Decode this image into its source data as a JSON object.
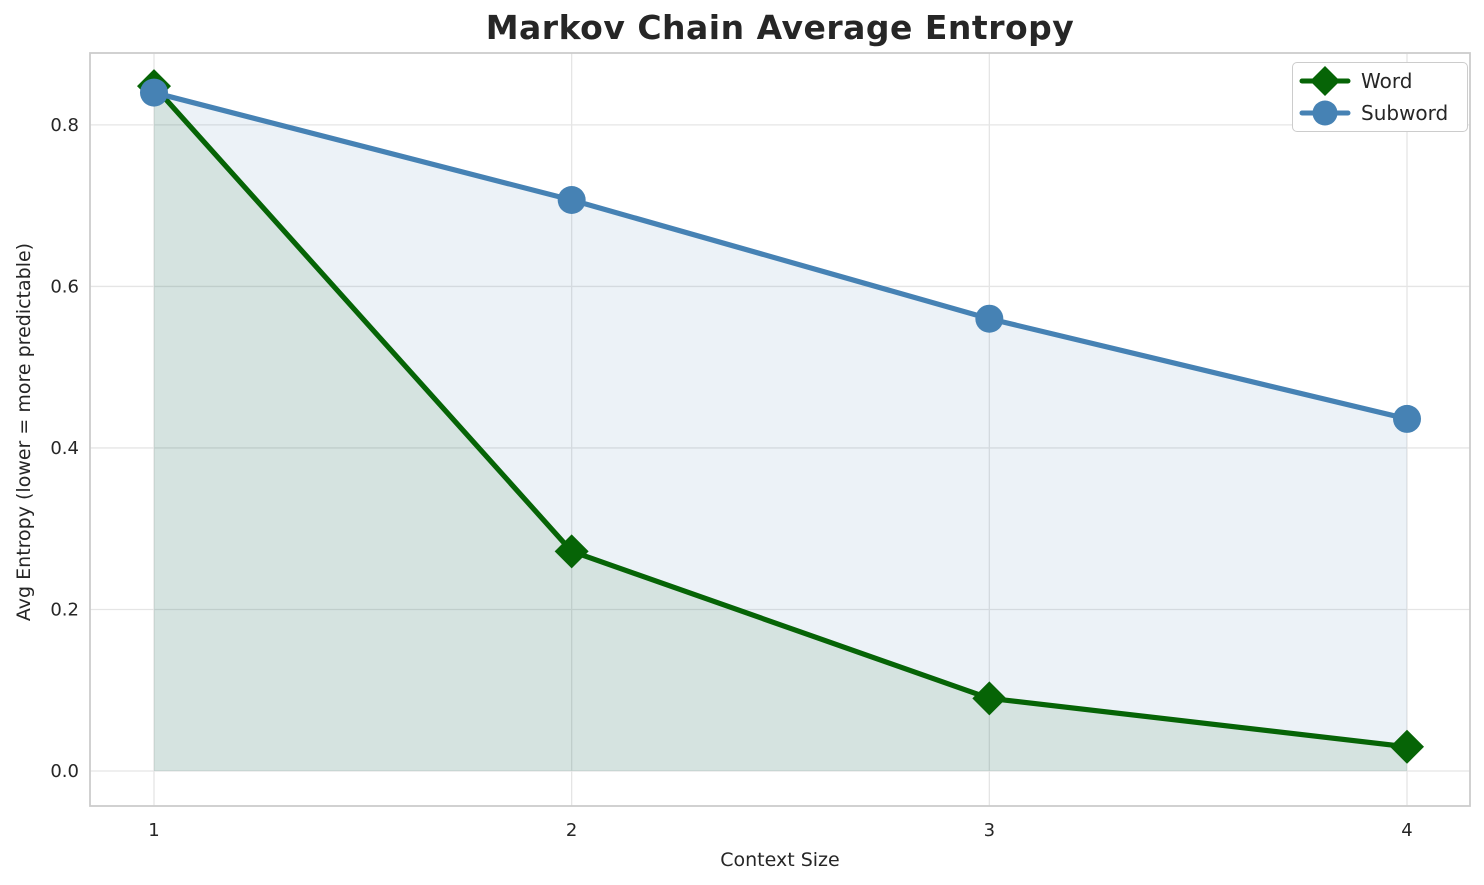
{
  "figure": {
    "background": "#ffffff"
  },
  "chart_data": {
    "type": "line",
    "title": "Markov Chain Average Entropy",
    "xlabel": "Context Size",
    "ylabel": "Avg Entropy (lower = more predictable)",
    "x": [
      1,
      2,
      3,
      4
    ],
    "x_tick_labels": [
      "1",
      "2",
      "3",
      "4"
    ],
    "y_tick_values": [
      0.0,
      0.2,
      0.4,
      0.6,
      0.8
    ],
    "y_tick_labels": [
      "0.0",
      "0.2",
      "0.4",
      "0.6",
      "0.8"
    ],
    "xlim": [
      0.8468,
      4.1508
    ],
    "ylim": [
      -0.0433,
      0.889
    ],
    "grid": true,
    "fill_to_zero": true,
    "legend_position": "upper right",
    "series": [
      {
        "name": "Word",
        "marker": "diamond",
        "color": "#066406",
        "fill_color": "rgba(6,100,6,0.10)",
        "values": [
          0.848,
          0.272,
          0.09,
          0.03
        ]
      },
      {
        "name": "Subword",
        "marker": "circle",
        "color": "#4682b4",
        "fill_color": "rgba(70,130,180,0.10)",
        "values": [
          0.84,
          0.707,
          0.56,
          0.436
        ]
      }
    ]
  },
  "styles": {
    "grid_color": "#e5e5e5",
    "spine_color": "#cccccc",
    "text_color": "#262626",
    "legend_border_color": "#cccccc",
    "legend_background": "#ffffff"
  }
}
